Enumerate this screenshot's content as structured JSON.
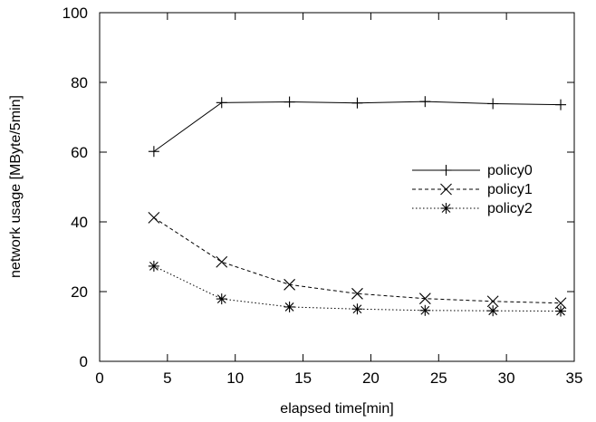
{
  "chart_data": {
    "type": "line",
    "xlabel": "elapsed time[min]",
    "ylabel": "network usage [MByte/5min]",
    "xlim": [
      0,
      35
    ],
    "ylim": [
      0,
      100
    ],
    "xticks": [
      "0",
      "5",
      "10",
      "15",
      "20",
      "25",
      "30",
      "35"
    ],
    "yticks": [
      "0",
      "20",
      "40",
      "60",
      "80",
      "100"
    ],
    "grid": false,
    "legend_position": "right-middle",
    "x": [
      4,
      9,
      14,
      19,
      24,
      29,
      34
    ],
    "series": [
      {
        "name": "policy0",
        "marker": "plus",
        "line_style": "solid",
        "values": [
          60.2,
          74.2,
          74.4,
          74.1,
          74.5,
          73.9,
          73.6
        ]
      },
      {
        "name": "policy1",
        "marker": "cross",
        "line_style": "dashed",
        "values": [
          41.2,
          28.5,
          22.0,
          19.4,
          18.0,
          17.2,
          16.7
        ]
      },
      {
        "name": "policy2",
        "marker": "star",
        "line_style": "dotted",
        "values": [
          27.3,
          17.9,
          15.6,
          15.0,
          14.6,
          14.5,
          14.4
        ]
      }
    ]
  }
}
